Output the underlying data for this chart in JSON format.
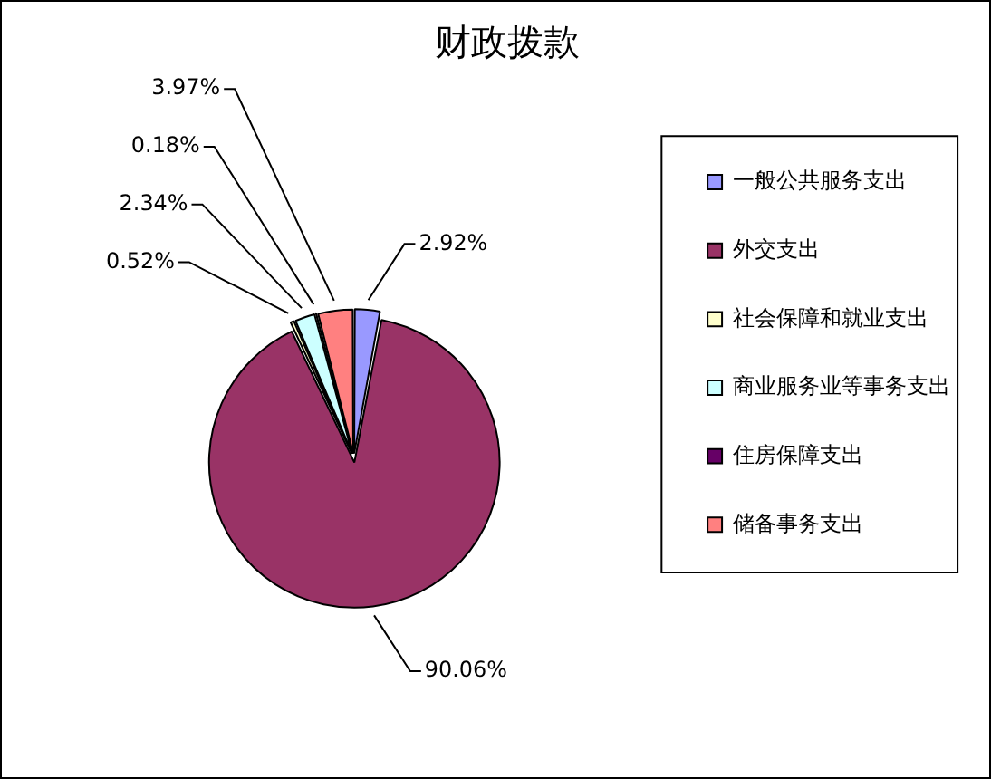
{
  "chart_data": {
    "type": "pie",
    "title": "财政拨款",
    "categories": [
      "一般公共服务支出",
      "外交支出",
      "社会保障和就业支出",
      "商业服务业等事务支出",
      "住房保障支出",
      "储备事务支出"
    ],
    "values": [
      2.92,
      90.06,
      0.52,
      2.34,
      0.18,
      3.97
    ],
    "value_labels": [
      "2.92%",
      "90.06%",
      "0.52%",
      "2.34%",
      "0.18%",
      "3.97%"
    ],
    "colors": [
      "#9999ff",
      "#993366",
      "#ffffcc",
      "#ccffff",
      "#660066",
      "#ff8080"
    ],
    "legend": "right"
  }
}
